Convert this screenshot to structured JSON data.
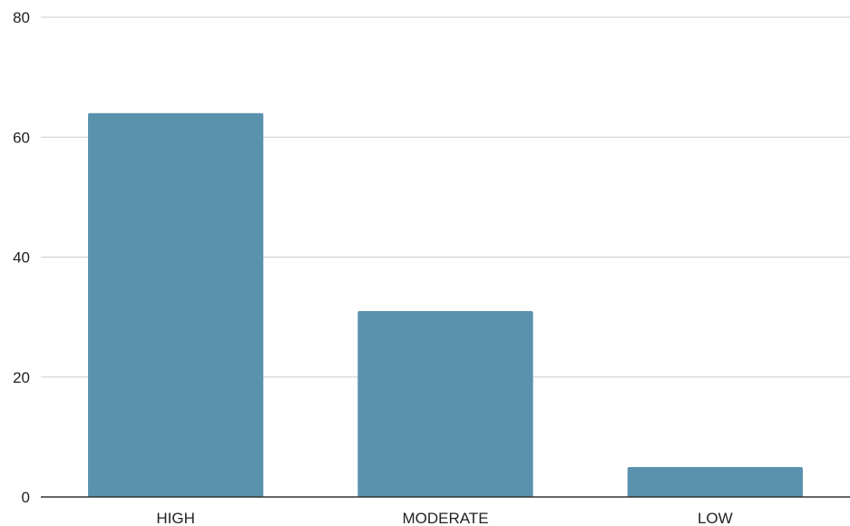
{
  "chart_data": {
    "type": "bar",
    "categories": [
      "HIGH",
      "MODERATE",
      "LOW"
    ],
    "values": [
      64,
      31,
      5
    ],
    "title": "",
    "xlabel": "",
    "ylabel": "",
    "ylim": [
      0,
      80
    ],
    "yticks": [
      0,
      20,
      40,
      60,
      80
    ],
    "grid": true,
    "legend": "none",
    "colors": {
      "bar": "#5a91ad",
      "grid": "#cccccc",
      "axis": "#333333",
      "text": "#222222"
    }
  }
}
